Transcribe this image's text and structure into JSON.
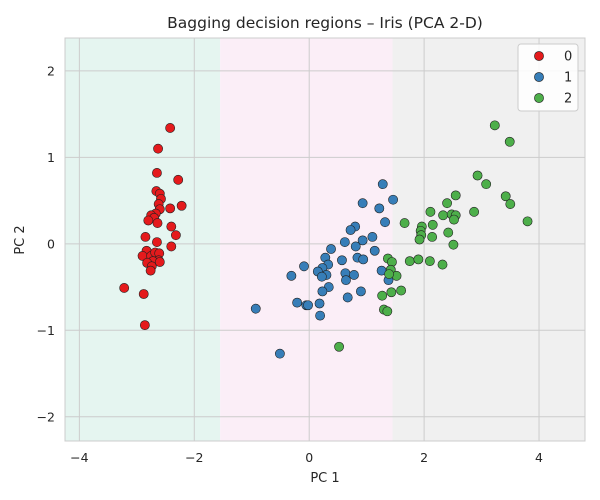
{
  "chart_data": {
    "type": "scatter",
    "title": "Bagging decision regions – Iris (PCA 2-D)",
    "xlabel": "PC 1",
    "ylabel": "PC 2",
    "xlim": [
      -4.25,
      4.8
    ],
    "ylim": [
      -2.28,
      2.38
    ],
    "xticks": [
      "−4",
      "−2",
      "0",
      "2",
      "4"
    ],
    "xtick_values": [
      -4,
      -2,
      0,
      2,
      4
    ],
    "yticks": [
      "−2",
      "−1",
      "0",
      "1",
      "2"
    ],
    "ytick_values": [
      -2,
      -1,
      0,
      1,
      2
    ],
    "grid": true,
    "legend_position": "top-right",
    "regions": [
      {
        "class": "0",
        "color": "#e5f5f0",
        "x_from": -4.25,
        "x_to": -1.55
      },
      {
        "class": "1",
        "color": "#fbeef7",
        "x_from": -1.55,
        "x_to": 1.45
      },
      {
        "class": "2",
        "color": "#f0f0f0",
        "x_from": 1.45,
        "x_to": 4.8
      }
    ],
    "series": [
      {
        "name": "0",
        "color": "#e41a1c",
        "points": [
          [
            -2.42,
            1.34
          ],
          [
            -2.63,
            1.1
          ],
          [
            -2.65,
            0.82
          ],
          [
            -2.28,
            0.74
          ],
          [
            -2.66,
            0.61
          ],
          [
            -2.6,
            0.58
          ],
          [
            -2.58,
            0.52
          ],
          [
            -2.22,
            0.44
          ],
          [
            -2.62,
            0.46
          ],
          [
            -2.6,
            0.4
          ],
          [
            -2.42,
            0.41
          ],
          [
            -2.67,
            0.35
          ],
          [
            -2.75,
            0.33
          ],
          [
            -2.7,
            0.3
          ],
          [
            -2.8,
            0.27
          ],
          [
            -2.64,
            0.24
          ],
          [
            -2.4,
            0.2
          ],
          [
            -2.85,
            0.08
          ],
          [
            -2.32,
            0.1
          ],
          [
            -2.65,
            0.02
          ],
          [
            -2.4,
            -0.03
          ],
          [
            -2.83,
            -0.08
          ],
          [
            -2.9,
            -0.14
          ],
          [
            -2.75,
            -0.14
          ],
          [
            -2.68,
            -0.1
          ],
          [
            -2.61,
            -0.11
          ],
          [
            -2.62,
            -0.19
          ],
          [
            -2.72,
            -0.2
          ],
          [
            -2.82,
            -0.22
          ],
          [
            -2.74,
            -0.26
          ],
          [
            -2.6,
            -0.21
          ],
          [
            -2.76,
            -0.31
          ],
          [
            -3.22,
            -0.51
          ],
          [
            -2.88,
            -0.58
          ],
          [
            -2.86,
            -0.94
          ]
        ]
      },
      {
        "name": "1",
        "color": "#377eb8",
        "points": [
          [
            1.28,
            0.69
          ],
          [
            1.46,
            0.51
          ],
          [
            0.93,
            0.47
          ],
          [
            1.22,
            0.41
          ],
          [
            0.8,
            0.2
          ],
          [
            1.32,
            0.25
          ],
          [
            0.72,
            0.16
          ],
          [
            1.1,
            0.08
          ],
          [
            0.62,
            0.02
          ],
          [
            0.93,
            0.04
          ],
          [
            0.38,
            -0.06
          ],
          [
            0.81,
            -0.03
          ],
          [
            1.14,
            -0.08
          ],
          [
            0.28,
            -0.16
          ],
          [
            0.84,
            -0.16
          ],
          [
            0.94,
            -0.18
          ],
          [
            0.57,
            -0.19
          ],
          [
            0.33,
            -0.24
          ],
          [
            0.23,
            -0.28
          ],
          [
            1.26,
            -0.31
          ],
          [
            -0.09,
            -0.26
          ],
          [
            0.15,
            -0.32
          ],
          [
            0.63,
            -0.34
          ],
          [
            0.78,
            -0.36
          ],
          [
            0.3,
            -0.36
          ],
          [
            0.22,
            -0.38
          ],
          [
            -0.31,
            -0.37
          ],
          [
            1.38,
            -0.42
          ],
          [
            0.64,
            -0.42
          ],
          [
            0.34,
            -0.5
          ],
          [
            0.23,
            -0.55
          ],
          [
            0.9,
            -0.55
          ],
          [
            0.67,
            -0.62
          ],
          [
            -0.21,
            -0.68
          ],
          [
            -0.05,
            -0.71
          ],
          [
            -0.02,
            -0.71
          ],
          [
            0.18,
            -0.69
          ],
          [
            -0.93,
            -0.75
          ],
          [
            0.19,
            -0.83
          ],
          [
            -0.51,
            -1.27
          ]
        ]
      },
      {
        "name": "2",
        "color": "#4daf4a",
        "points": [
          [
            3.23,
            1.37
          ],
          [
            3.49,
            1.18
          ],
          [
            2.93,
            0.79
          ],
          [
            3.08,
            0.69
          ],
          [
            2.55,
            0.56
          ],
          [
            3.42,
            0.55
          ],
          [
            2.4,
            0.47
          ],
          [
            3.5,
            0.46
          ],
          [
            2.11,
            0.37
          ],
          [
            2.33,
            0.33
          ],
          [
            2.48,
            0.34
          ],
          [
            2.87,
            0.37
          ],
          [
            2.55,
            0.33
          ],
          [
            2.52,
            0.28
          ],
          [
            3.8,
            0.26
          ],
          [
            1.66,
            0.24
          ],
          [
            2.15,
            0.22
          ],
          [
            1.96,
            0.2
          ],
          [
            1.94,
            0.15
          ],
          [
            2.42,
            0.13
          ],
          [
            1.95,
            0.1
          ],
          [
            2.14,
            0.08
          ],
          [
            1.92,
            0.05
          ],
          [
            2.51,
            -0.01
          ],
          [
            1.75,
            -0.2
          ],
          [
            1.9,
            -0.18
          ],
          [
            2.1,
            -0.2
          ],
          [
            2.32,
            -0.24
          ],
          [
            1.37,
            -0.17
          ],
          [
            1.44,
            -0.21
          ],
          [
            1.42,
            -0.3
          ],
          [
            1.52,
            -0.37
          ],
          [
            1.39,
            -0.35
          ],
          [
            1.6,
            -0.54
          ],
          [
            1.43,
            -0.56
          ],
          [
            1.27,
            -0.6
          ],
          [
            1.3,
            -0.76
          ],
          [
            1.36,
            -0.78
          ],
          [
            0.52,
            -1.19
          ]
        ]
      }
    ]
  }
}
